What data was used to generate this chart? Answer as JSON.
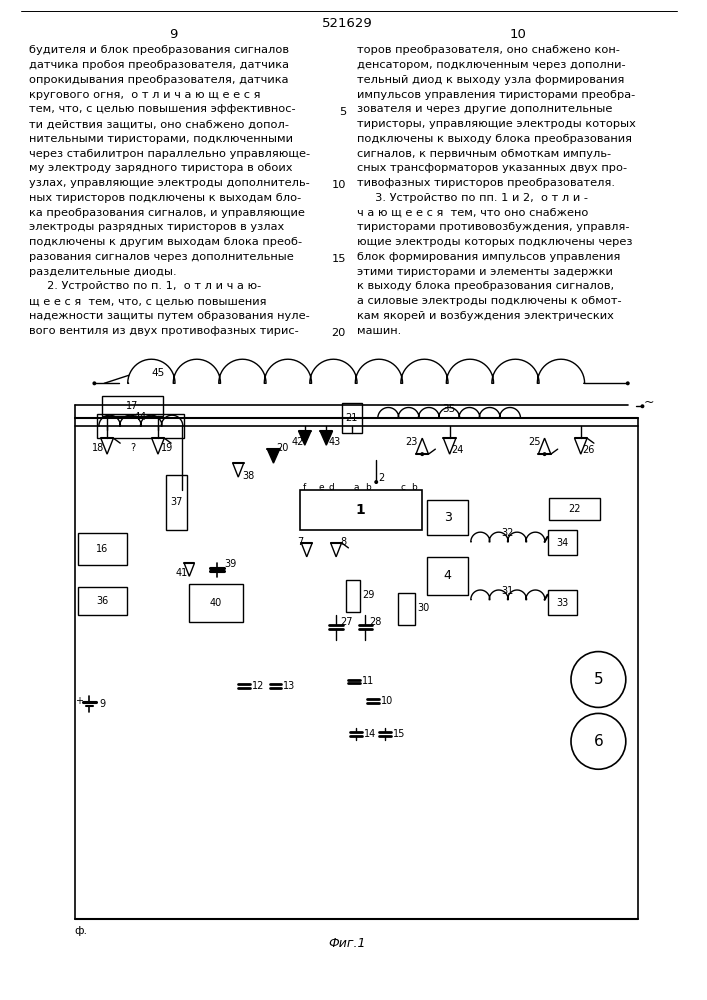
{
  "page_title": "521629",
  "left_col_num": "9",
  "right_col_num": "10",
  "left_text": [
    "будителя и блок преобразования сигналов",
    "датчика пробоя преобразователя, датчика",
    "опрокидывания преобразователя, датчика",
    "кругового огня,  о т л и ч а ю щ е е с я",
    "тем, что, с целью повышения эффективнос-",
    "ти действия защиты, оно снабжено допол-",
    "нительными тиристорами, подключенными",
    "через стабилитрон параллельно управляюще-",
    "му электроду зарядного тиристора в обоих",
    "узлах, управляющие электроды дополнитель-",
    "ных тиристоров подключены к выходам бло-",
    "ка преобразования сигналов, и управляющие",
    "электроды разрядных тиристоров в узлах",
    "подключены к другим выходам блока преоб-",
    "разования сигналов через дополнительные",
    "разделительные диоды.",
    "     2. Устройство по п. 1,  о т л и ч а ю-",
    "щ е е с я  тем, что, с целью повышения",
    "надежности защиты путем образования нуле-",
    "вого вентиля из двух противофазных тирис-"
  ],
  "right_text": [
    "торов преобразователя, оно снабжено кон-",
    "денсатором, подключенным через дополни-",
    "тельный диод к выходу узла формирования",
    "импульсов управления тиристорами преобра-",
    "зователя и через другие дополнительные",
    "тиристоры, управляющие электроды которых",
    "подключены к выходу блока преобразования",
    "сигналов, к первичным обмоткам импуль-",
    "сных трансформаторов указанных двух про-",
    "тивофазных тиристоров преобразователя.",
    "     3. Устройство по пп. 1 и 2,  о т л и -",
    "ч а ю щ е е с я  тем, что оно снабжено",
    "тиристорами противовозбуждения, управля-",
    "ющие электроды которых подключены через",
    "блок формирования импульсов управления",
    "этими тиристорами и элементы задержки",
    "к выходу блока преобразования сигналов,",
    "а силовые электроды подключены к обмот-",
    "кам якорей и возбуждения электрических",
    "машин."
  ],
  "line_numbers": [
    5,
    10,
    15,
    20
  ],
  "fig_caption": "Фиг.1",
  "bg_color": "#ffffff",
  "text_color": "#000000",
  "font_size": 8.2
}
